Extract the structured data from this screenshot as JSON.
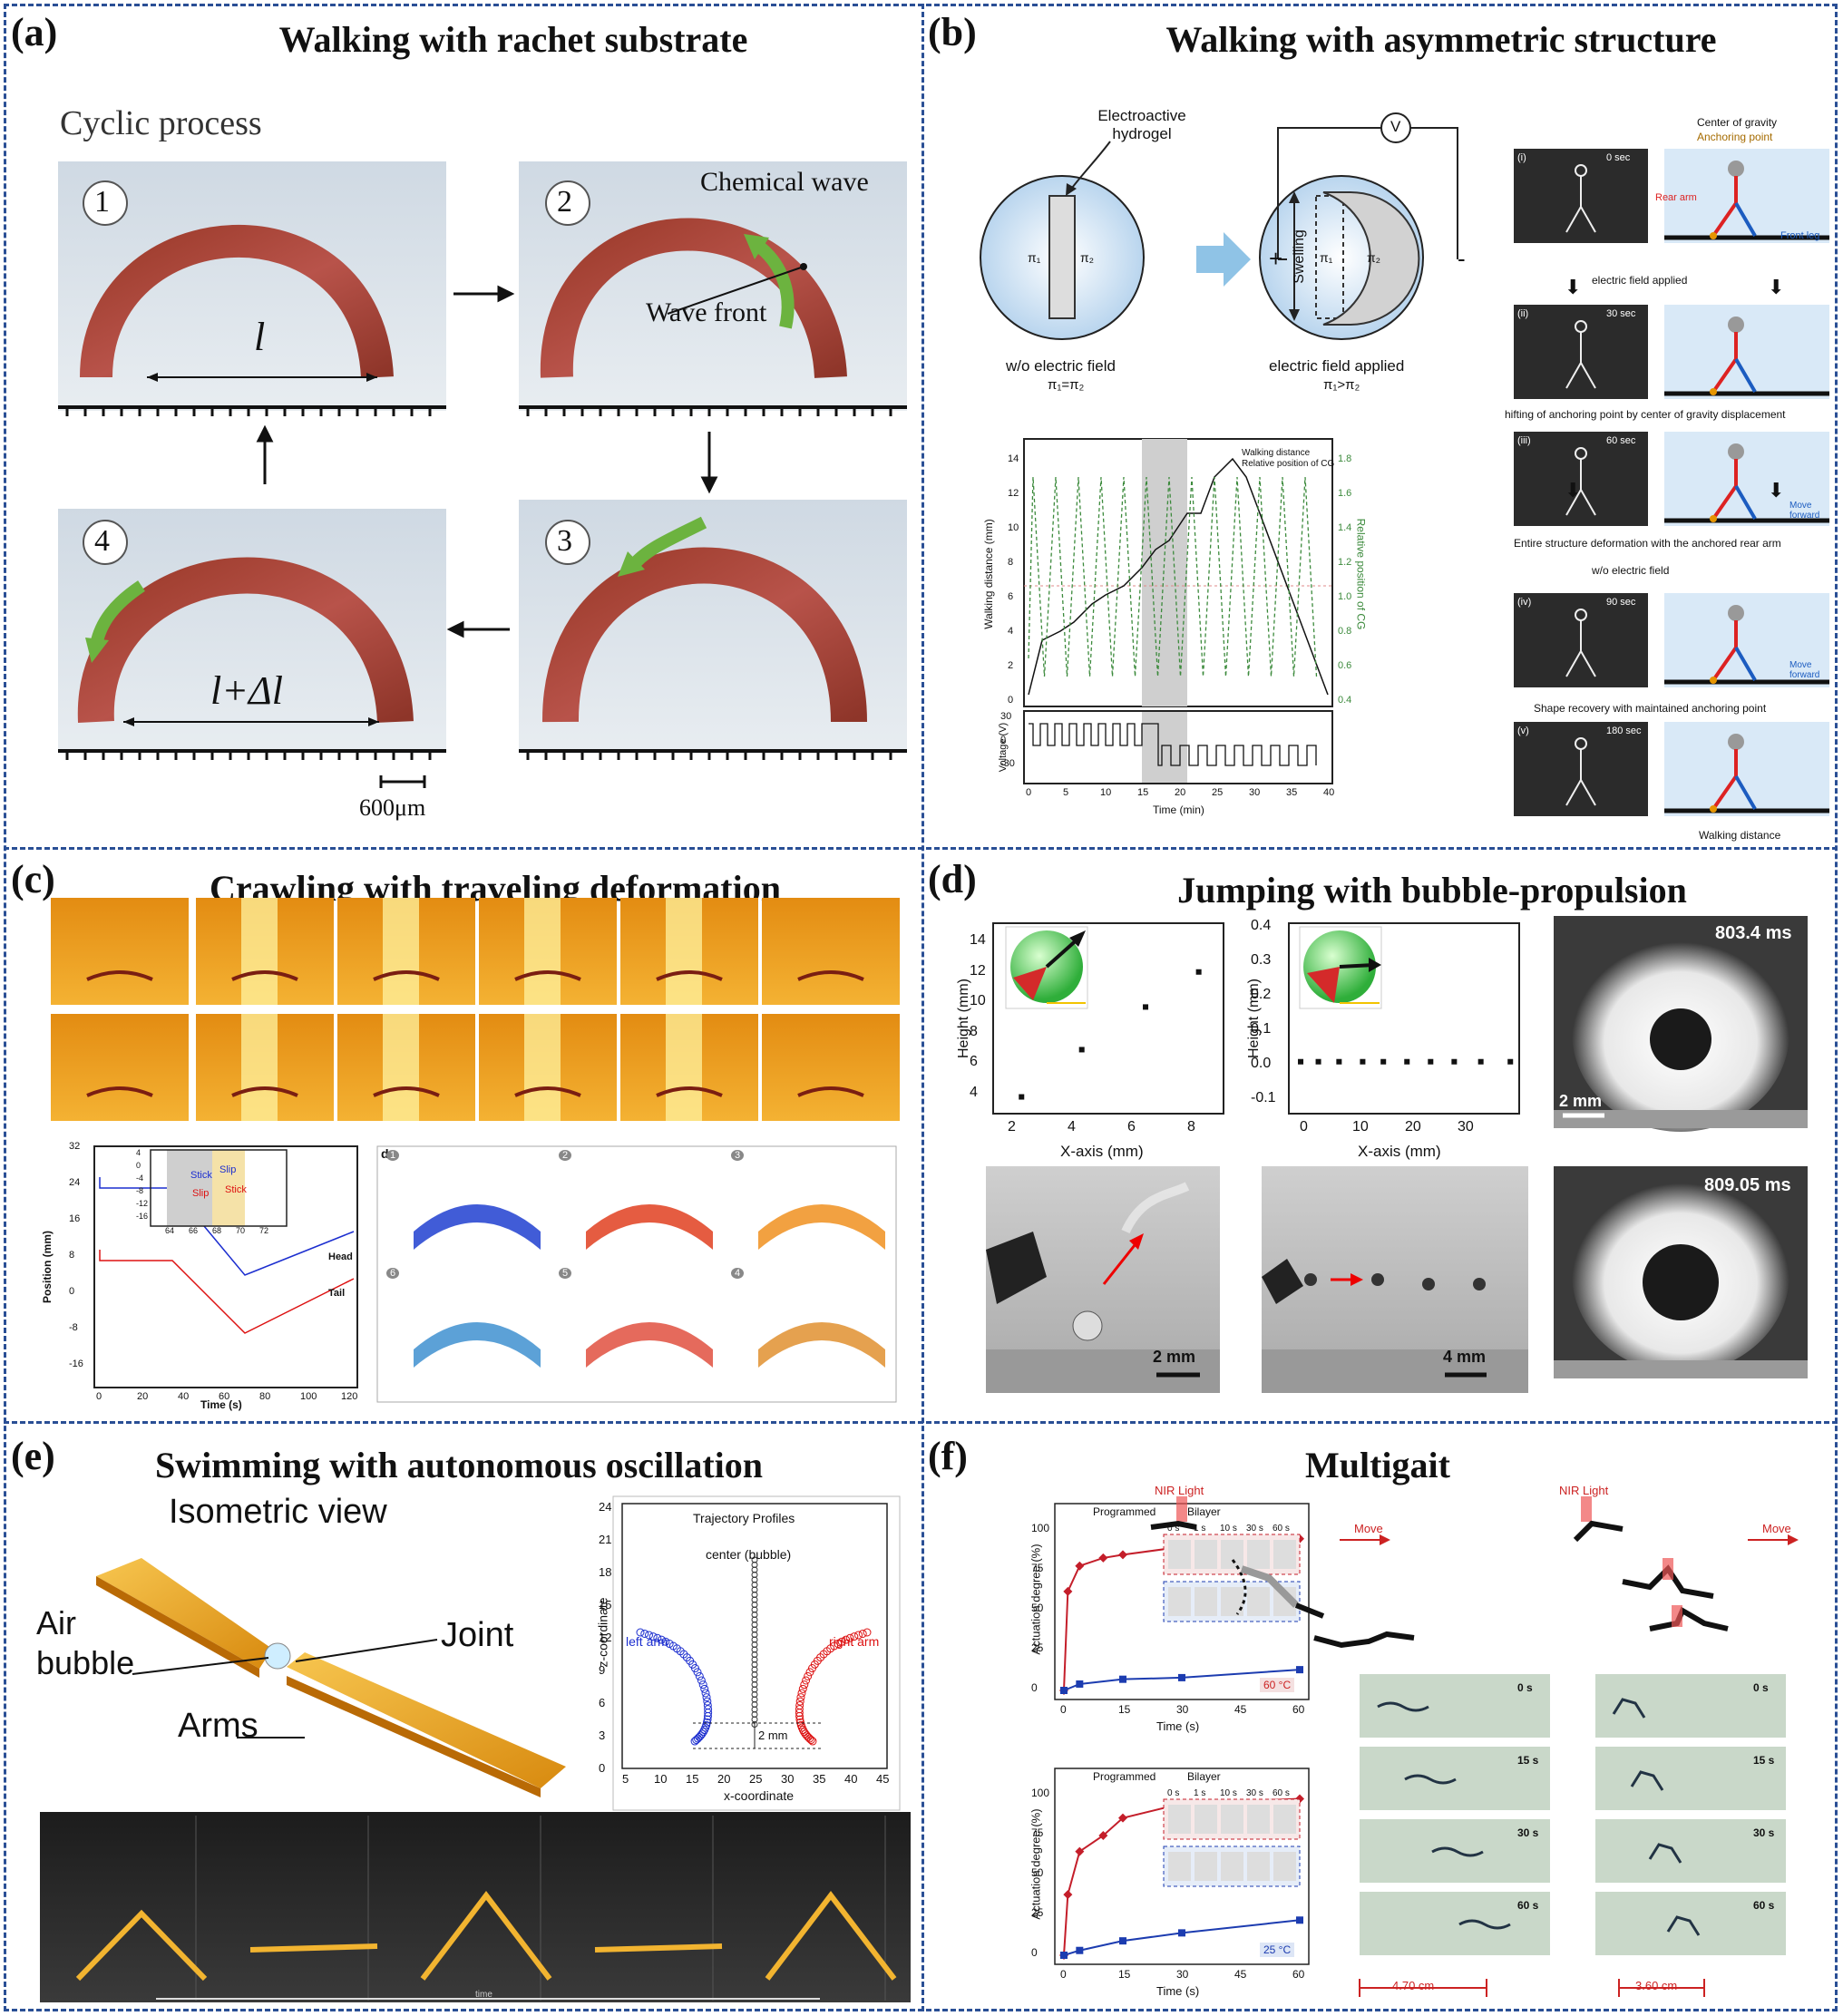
{
  "panels": {
    "a": {
      "label": "(a)",
      "title": "Walking with rachet substrate",
      "subtitle": "Cyclic process",
      "steps": [
        "1",
        "2",
        "3",
        "4"
      ],
      "chemical_wave": "Chemical wave",
      "wave_front": "Wave front",
      "l_label": "l",
      "l_dl_label": "l+Δl",
      "scale": "600μm"
    },
    "b": {
      "label": "(b)",
      "title": "Walking with asymmetric structure",
      "hydrogel_label": "Electroactive hydrogel",
      "voltage_symbol": "V",
      "pi1": "π₁",
      "pi2": "π₂",
      "swelling": "Swelling",
      "no_field": "w/o electric field",
      "no_field_eq": "π₁=π₂",
      "field_applied": "electric field applied",
      "field_eq": "π₁>π₂",
      "plus": "+",
      "minus": "-",
      "legend_center": "Center of gravity",
      "legend_anchor": "Anchoring point",
      "rear_arm": "Rear arm",
      "front_leg": "Front leg",
      "frames": [
        {
          "id": "(i)",
          "time": "0 sec"
        },
        {
          "id": "(ii)",
          "time": "30 sec"
        },
        {
          "id": "(iii)",
          "time": "60 sec"
        },
        {
          "id": "(iv)",
          "time": "90 sec"
        },
        {
          "id": "(v)",
          "time": "180 sec"
        }
      ],
      "step_texts": [
        "electric field applied",
        "hifting of anchoring point by center of gravity displacement",
        "Entire structure deformation with the anchored rear arm",
        "w/o electric field",
        "Shape recovery with maintained anchoring point"
      ],
      "move_forward": "Move forward",
      "walking_distance": "Walking distance",
      "chart_legend": [
        "Walking distance",
        "Relative position of CG"
      ],
      "y_left_label": "Walking distance (mm)",
      "y_right_label": "Relative position of CG",
      "y_volt_label": "Voltage (V)",
      "x_label": "Time (min)",
      "y_ticks": [
        "0",
        "2",
        "4",
        "6",
        "8",
        "10",
        "12",
        "14"
      ],
      "y2_ticks": [
        "0.4",
        "0.6",
        "0.8",
        "1.0",
        "1.2",
        "1.4",
        "1.6",
        "1.8"
      ],
      "volt_ticks": [
        "30",
        "0",
        "-30"
      ],
      "x_ticks": [
        "0",
        "5",
        "10",
        "15",
        "20",
        "25",
        "30",
        "35",
        "40"
      ]
    },
    "c": {
      "label": "(c)",
      "title": "Crawling with traveling deformation",
      "y_label": "Position (mm)",
      "x_label": "Time (s)",
      "y_ticks": [
        "32",
        "24",
        "16",
        "8",
        "0",
        "-8",
        "-16"
      ],
      "x_ticks": [
        "0",
        "20",
        "40",
        "60",
        "80",
        "100",
        "120"
      ],
      "head": "Head",
      "tail": "Tail",
      "inset_y_ticks": [
        "4",
        "0",
        "-4",
        "-8",
        "-12",
        "-16"
      ],
      "inset_x_ticks": [
        "64",
        "66",
        "68",
        "70",
        "72"
      ],
      "stick": "Stick",
      "slip": "Slip",
      "sim_label": "d",
      "sim_numbers": [
        "1",
        "2",
        "3",
        "6",
        "5",
        "4"
      ]
    },
    "d": {
      "label": "(d)",
      "title": "Jumping with bubble-propulsion",
      "y_label": "Height (mm)",
      "x_label": "X-axis (mm)",
      "chart1_y_ticks": [
        "4",
        "6",
        "8",
        "10",
        "12",
        "14"
      ],
      "chart1_x_ticks": [
        "2",
        "4",
        "6",
        "8"
      ],
      "chart2_y_ticks": [
        "-0.1",
        "0.0",
        "0.1",
        "0.2",
        "0.3",
        "0.4"
      ],
      "chart2_x_ticks": [
        "0",
        "10",
        "20",
        "30"
      ],
      "time1": "803.4 ms",
      "time2": "809.05 ms",
      "scale_2mm": "2 mm",
      "scale_4mm": "4 mm",
      "scale_2mm_b": "2 mm"
    },
    "e": {
      "label": "(e)",
      "title": "Swimming with autonomous oscillation",
      "iso_view": "Isometric view",
      "air_bubble": "Air bubble",
      "joint": "Joint",
      "arms": "Arms",
      "traj_title": "Trajectory Profiles",
      "center": "center (bubble)",
      "left_arm": "left arm",
      "right_arm": "right arm",
      "gap": "2 mm",
      "y_label": "z-coordinate",
      "x_label": "x-coordinate",
      "y_ticks": [
        "0",
        "3",
        "6",
        "9",
        "12",
        "15",
        "18",
        "21",
        "24"
      ],
      "x_ticks": [
        "5",
        "10",
        "15",
        "20",
        "25",
        "30",
        "35",
        "40",
        "45"
      ],
      "time_axis": "time"
    },
    "f": {
      "label": "(f)",
      "title": "Multigait",
      "legend": [
        "Programmed",
        "Bilayer"
      ],
      "y_label": "Actuation degree (%)",
      "x_label": "Time (s)",
      "y_ticks": [
        "0",
        "25",
        "50",
        "75",
        "100"
      ],
      "x_ticks": [
        "0",
        "15",
        "30",
        "45",
        "60"
      ],
      "temp1": "60 °C",
      "temp2": "25 °C",
      "frame_times": [
        "0 s",
        "1 s",
        "10 s",
        "30 s",
        "60 s"
      ],
      "nir": "NIR Light",
      "move": "Move",
      "photo_times": [
        "0 s",
        "15 s",
        "30 s",
        "60 s"
      ],
      "dist1": "4.70 cm",
      "dist2": "3.60 cm"
    }
  },
  "chart_data": [
    {
      "type": "scatter",
      "panel": "d-left",
      "xlabel": "X-axis (mm)",
      "ylabel": "Height (mm)",
      "x": [
        2.3,
        4.0,
        5.8,
        7.3
      ],
      "y": [
        3.6,
        6.7,
        9.5,
        11.8
      ],
      "xlim": [
        1.5,
        8
      ],
      "ylim": [
        2.5,
        15
      ]
    },
    {
      "type": "scatter",
      "panel": "d-middle",
      "xlabel": "X-axis (mm)",
      "ylabel": "Height (mm)",
      "x": [
        0,
        3,
        6.5,
        10.5,
        14,
        18,
        22,
        26,
        30.5,
        35.5
      ],
      "y": [
        0,
        0,
        0,
        0,
        0,
        0,
        0,
        0,
        0,
        0
      ],
      "xlim": [
        -2,
        37
      ],
      "ylim": [
        -0.15,
        0.4
      ]
    },
    {
      "type": "line",
      "panel": "f-top",
      "xlabel": "Time (s)",
      "ylabel": "Actuation degree (%)",
      "series": [
        {
          "name": "Programmed",
          "x": [
            0,
            1,
            4,
            10,
            15,
            30,
            60
          ],
          "y": [
            0,
            62,
            78,
            83,
            85,
            90,
            95
          ]
        },
        {
          "name": "Bilayer",
          "x": [
            0,
            4,
            15,
            30,
            60
          ],
          "y": [
            0,
            4,
            7,
            8,
            13
          ]
        }
      ],
      "xlim": [
        0,
        60
      ],
      "ylim": [
        0,
        100
      ]
    },
    {
      "type": "line",
      "panel": "f-bottom",
      "xlabel": "Time (s)",
      "ylabel": "Actuation degree (%)",
      "series": [
        {
          "name": "Programmed",
          "x": [
            0,
            1,
            4,
            10,
            15,
            30,
            60
          ],
          "y": [
            0,
            38,
            65,
            75,
            86,
            95,
            98
          ]
        },
        {
          "name": "Bilayer",
          "x": [
            0,
            4,
            15,
            30,
            60
          ],
          "y": [
            0,
            3,
            9,
            14,
            22
          ]
        }
      ],
      "xlim": [
        0,
        60
      ],
      "ylim": [
        0,
        100
      ]
    }
  ]
}
